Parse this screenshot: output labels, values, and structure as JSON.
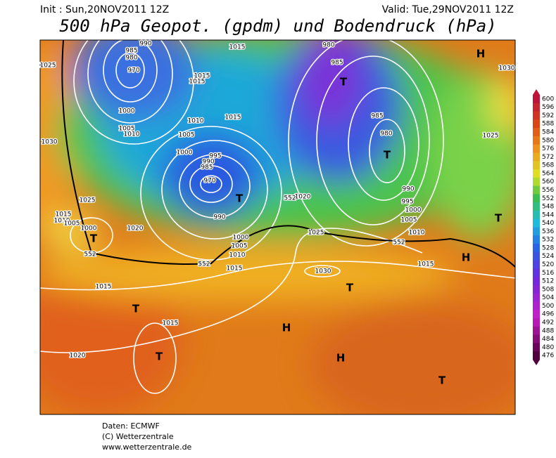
{
  "header": {
    "init": "Init : Sun,20NOV2011 12Z",
    "valid": "Valid: Tue,29NOV2011 12Z",
    "title": "500 hPa Geopot. (gpdm) und Bodendruck (hPa)"
  },
  "colorbar": {
    "ticks": [
      600,
      596,
      592,
      588,
      584,
      580,
      576,
      572,
      568,
      564,
      560,
      556,
      552,
      548,
      544,
      540,
      536,
      532,
      528,
      524,
      520,
      516,
      512,
      508,
      504,
      500,
      496,
      492,
      488,
      484,
      480,
      476
    ]
  },
  "map": {
    "centers": [
      "H",
      "H",
      "H",
      "H",
      "T",
      "T",
      "T",
      "T",
      "T",
      "T",
      "T",
      "T",
      "T"
    ],
    "isobar_labels": [
      "990",
      "985",
      "980",
      "970",
      "1015",
      "1015",
      "1015",
      "1015",
      "1010",
      "1005",
      "1000",
      "995",
      "990",
      "985",
      "970",
      "990",
      "1000",
      "1005",
      "1010",
      "1015",
      "1000",
      "1005",
      "1010",
      "1030",
      "1025",
      "1020",
      "1015",
      "1010",
      "1005",
      "1000",
      "1015",
      "1015",
      "1020",
      "1020",
      "1025",
      "1030",
      "1015",
      "1010",
      "1005",
      "1000",
      "995",
      "990",
      "985",
      "980",
      "985",
      "980",
      "1025",
      "1030",
      "1025",
      "552",
      "552",
      "552",
      "552"
    ]
  },
  "footer": {
    "lines": [
      "Daten: ECMWF",
      "(C) Wetterzentrale",
      "www.wetterzentrale.de"
    ]
  }
}
